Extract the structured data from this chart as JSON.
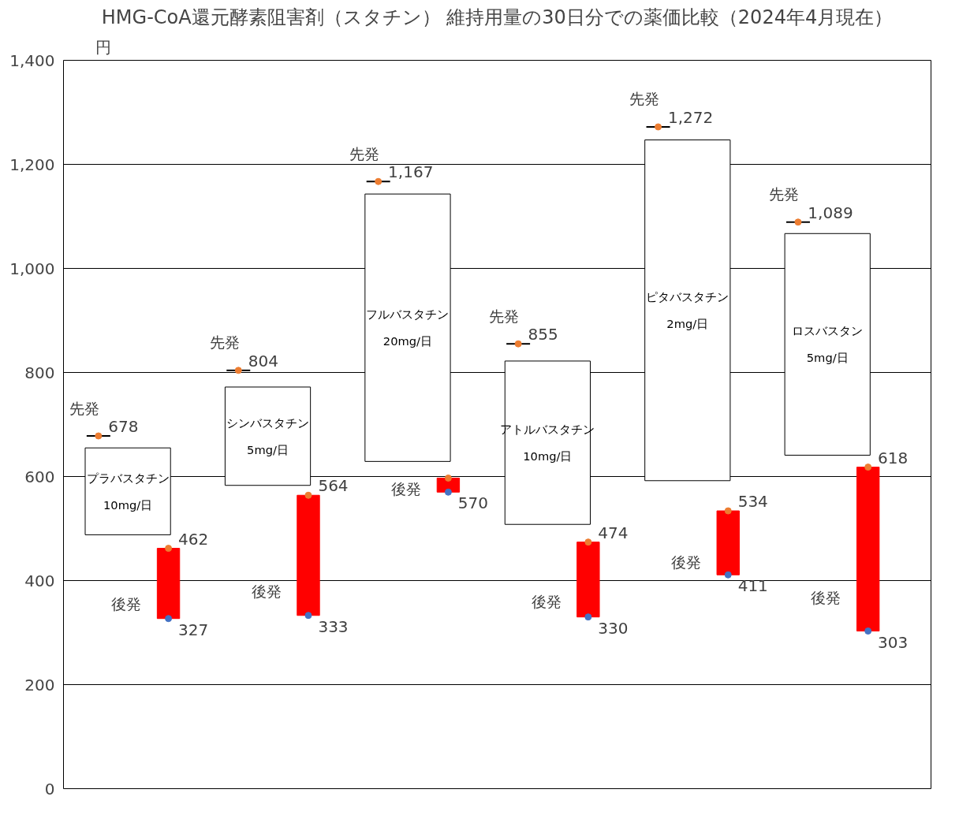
{
  "chart_data": {
    "type": "bar",
    "title": "HMG-CoA還元酵素阻害剤（スタチン） 維持用量の30日分での薬価比較（2024年4月現在）",
    "ylabel": "円",
    "categories": [
      null,
      null,
      null,
      null,
      null,
      null
    ],
    "ylim": [
      0,
      1400
    ],
    "yticks": [
      0,
      200,
      400,
      600,
      800,
      {
        "value": 1000,
        "label": "1,000"
      },
      {
        "value": 1200,
        "label": "1,200"
      },
      {
        "value": 1400,
        "label": "1,400"
      }
    ],
    "grid": "y",
    "series": [
      {
        "type": "bar",
        "color": "#ffffff",
        "base": [
          488,
          583,
          629,
          508,
          592,
          641
        ],
        "values": [
          167,
          189,
          514,
          314,
          655,
          426
        ],
        "value_labels": [
          "プラバスタチン\n10mg/日",
          "シンバスタチン\n5mg/日",
          "フルバスタチン\n20mg/日",
          "アトルバスタチン\n10mg/日",
          "ピタバスタチン\n2mg/日",
          "ロスバスタン\n5mg/日"
        ]
      },
      {
        "type": "bar",
        "name": "後発",
        "color": "#ff0000",
        "base": [
          327,
          333,
          570,
          330,
          411,
          303
        ],
        "values": [
          135,
          231,
          27,
          144,
          123,
          315
        ]
      },
      {
        "type": "scatter",
        "name": "先発",
        "color": "#ed7d31",
        "marker": "circle",
        "values": [
          678,
          804,
          1167,
          855,
          1272,
          1089
        ],
        "value_labels": [
          "678",
          "804",
          "1,167",
          "855",
          "1,272",
          "1,089"
        ]
      },
      {
        "type": "scatter",
        "color": "#ed7d31",
        "marker": "circle",
        "values": [
          462,
          564,
          597,
          474,
          534,
          618
        ],
        "value_labels": [
          "462",
          "564",
          null,
          "474",
          "534",
          "618"
        ]
      },
      {
        "type": "scatter",
        "color": "#4472c4",
        "marker": "circle",
        "values": [
          327,
          333,
          570,
          330,
          411,
          303
        ],
        "value_labels": [
          "327",
          "333",
          "570",
          "330",
          "411",
          "303"
        ]
      }
    ]
  }
}
